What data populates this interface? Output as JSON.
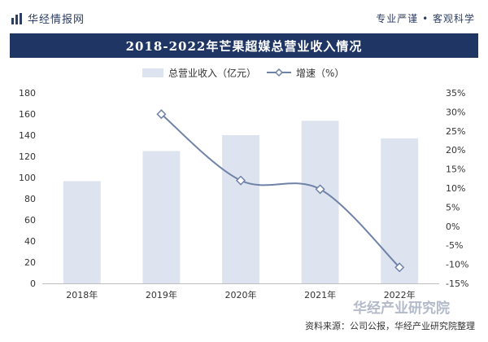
{
  "header": {
    "brand": "华经情报网",
    "slogan": "专业严谨 • 客观科学",
    "icons": {
      "brand_logo": "bar-chart-logo-icon"
    }
  },
  "footer": {
    "source": "资料来源：公司公报，华经产业研究院整理",
    "watermark": "华经产业研究院"
  },
  "colors": {
    "title_bg": "#1f3664",
    "bar": "#dde3ef",
    "line": "#6f82a8",
    "marker_fill": "#ffffff",
    "axis_text": "#333333"
  },
  "chart_data": {
    "type": "bar",
    "title": "2018-2022年芒果超媒总营业收入情况",
    "categories": [
      "2018年",
      "2019年",
      "2020年",
      "2021年",
      "2022年"
    ],
    "series": [
      {
        "name": "总营业收入（亿元）",
        "type": "bar",
        "axis": "left",
        "values": [
          96.6,
          125.0,
          140.0,
          153.6,
          137.0
        ]
      },
      {
        "name": "增速（%）",
        "type": "line",
        "axis": "right",
        "values": [
          null,
          29.4,
          12.0,
          9.7,
          -10.8
        ]
      }
    ],
    "y_left": {
      "min": 0,
      "max": 180,
      "ticks": [
        0,
        20,
        40,
        60,
        80,
        100,
        120,
        140,
        160,
        180
      ]
    },
    "y_right": {
      "min": -15,
      "max": 35,
      "ticks": [
        -15,
        -10,
        -5,
        0,
        5,
        10,
        15,
        20,
        25,
        30,
        35
      ],
      "tick_suffix": "%"
    },
    "legend_position": "top-center",
    "grid": false
  }
}
